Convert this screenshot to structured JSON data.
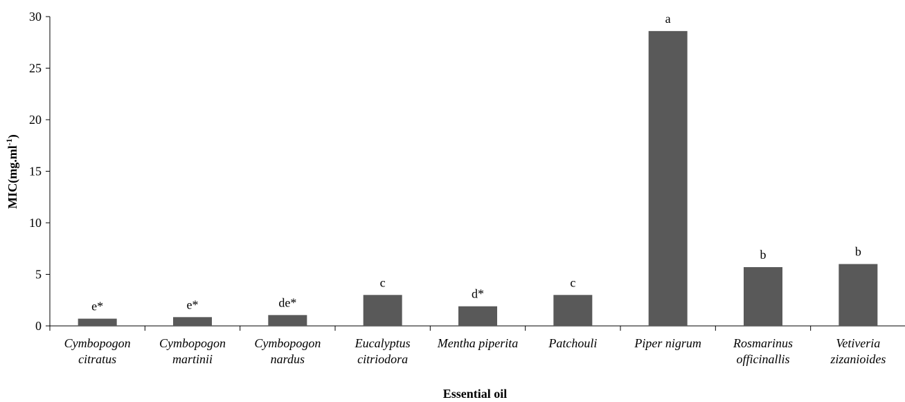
{
  "chart_data": {
    "type": "bar",
    "categories": [
      [
        "Cymbopogon",
        "citratus"
      ],
      [
        "Cymbopogon",
        "martinii"
      ],
      [
        "Cymbopogon",
        "nardus"
      ],
      [
        "Eucalyptus",
        "citriodora"
      ],
      [
        "Mentha piperita"
      ],
      [
        "Patchouli"
      ],
      [
        "Piper nigrum"
      ],
      [
        "Rosmarinus",
        "officinallis"
      ],
      [
        "Vetiveria",
        "zizanioides"
      ]
    ],
    "values": [
      0.7,
      0.85,
      1.05,
      3.0,
      1.9,
      3.0,
      28.6,
      5.7,
      6.0
    ],
    "bar_labels": [
      "e*",
      "e*",
      "de*",
      "c",
      "d*",
      "c",
      "a",
      "b",
      "b"
    ],
    "xlabel": "Essential oil",
    "ylabel_main": "MIC(mg.ml",
    "ylabel_sup": "-1",
    "ylabel_end": ")",
    "ylim": [
      0,
      30
    ],
    "yticks": [
      0,
      5,
      10,
      15,
      20,
      25,
      30
    ],
    "grid": false,
    "bar_color": "#595959"
  }
}
